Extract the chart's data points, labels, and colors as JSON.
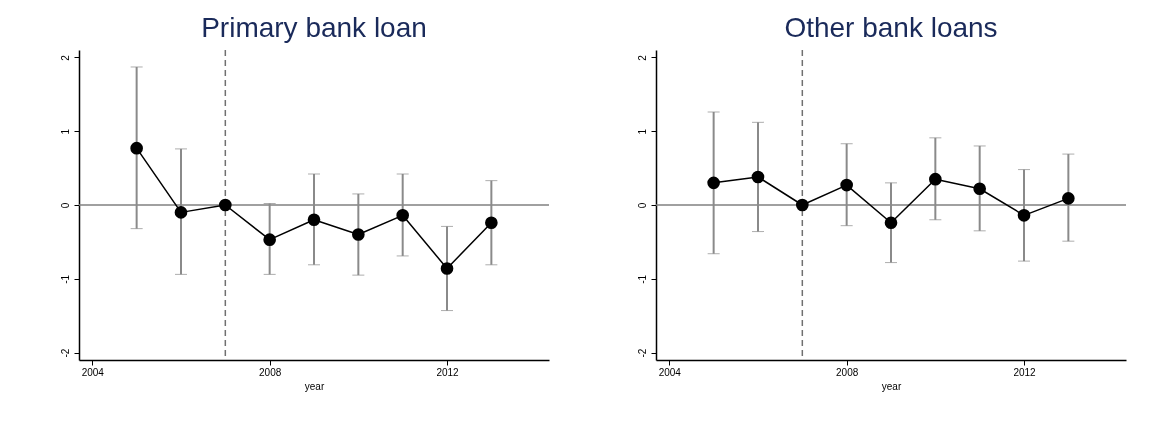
{
  "chart_data": [
    {
      "type": "line",
      "title": "Primary bank loan",
      "xlabel": "year",
      "x": [
        2005,
        2006,
        2007,
        2008,
        2009,
        2010,
        2011,
        2012,
        2013
      ],
      "xlim": [
        2003.7,
        2014.3
      ],
      "xticks": [
        2004,
        2008,
        2012
      ],
      "ylim": [
        -2.1,
        2.1
      ],
      "yticks": [
        -2,
        -1,
        0,
        1,
        2
      ],
      "grid": false,
      "marker": "circle",
      "line_style": "solid",
      "series": [
        {
          "color": "#000000",
          "values": [
            0.77,
            -0.1,
            0,
            -0.47,
            -0.2,
            -0.4,
            -0.14,
            -0.86,
            -0.24
          ],
          "errors": [
            [
              -0.32,
              1.87
            ],
            [
              -0.94,
              0.76
            ],
            null,
            [
              -0.94,
              0.02
            ],
            [
              -0.81,
              0.42
            ],
            [
              -0.95,
              0.15
            ],
            [
              -0.69,
              0.42
            ],
            [
              -1.43,
              -0.29
            ],
            [
              -0.81,
              0.33
            ]
          ]
        }
      ],
      "ref_lines": [
        {
          "axis": "y",
          "value": 0,
          "color": "#808080",
          "line_style": "solid"
        },
        {
          "axis": "x",
          "value": 2007,
          "color": "#707070",
          "line_style": "dashed"
        }
      ]
    },
    {
      "type": "line",
      "title": "Other bank loans",
      "xlabel": "year",
      "x": [
        2005,
        2006,
        2007,
        2008,
        2009,
        2010,
        2011,
        2012,
        2013
      ],
      "xlim": [
        2003.7,
        2014.3
      ],
      "xticks": [
        2004,
        2008,
        2012
      ],
      "ylim": [
        -2.1,
        2.1
      ],
      "yticks": [
        -2,
        -1,
        0,
        1,
        2
      ],
      "grid": false,
      "marker": "circle",
      "line_style": "solid",
      "series": [
        {
          "color": "#000000",
          "values": [
            0.3,
            0.38,
            0,
            0.27,
            -0.24,
            0.35,
            0.22,
            -0.14,
            0.09
          ],
          "errors": [
            [
              -0.66,
              1.26
            ],
            [
              -0.36,
              1.12
            ],
            null,
            [
              -0.28,
              0.83
            ],
            [
              -0.78,
              0.3
            ],
            [
              -0.2,
              0.91
            ],
            [
              -0.35,
              0.8
            ],
            [
              -0.76,
              0.48
            ],
            [
              -0.49,
              0.69
            ]
          ]
        }
      ],
      "ref_lines": [
        {
          "axis": "y",
          "value": 0,
          "color": "#808080",
          "line_style": "solid"
        },
        {
          "axis": "x",
          "value": 2007,
          "color": "#707070",
          "line_style": "dashed"
        }
      ]
    }
  ]
}
